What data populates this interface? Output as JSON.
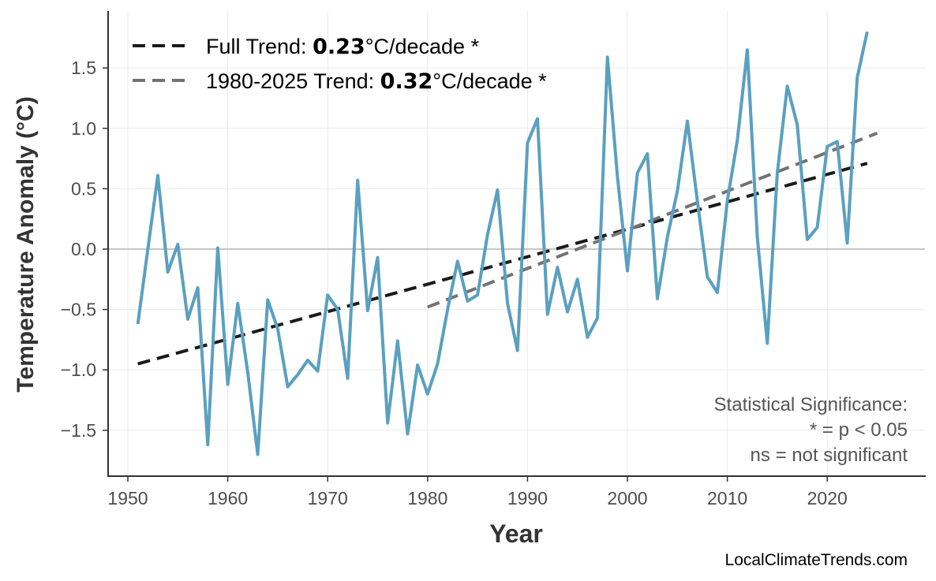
{
  "chart_data": {
    "type": "line",
    "xlabel": "Year",
    "ylabel": "Temperature Anomaly (°C)",
    "xlim": [
      1948,
      2029
    ],
    "ylim": [
      -1.88,
      1.87
    ],
    "xticks": [
      1950,
      1960,
      1970,
      1980,
      1990,
      2000,
      2010,
      2020
    ],
    "yticks": [
      -1.5,
      -1.0,
      -0.5,
      0.0,
      0.5,
      1.0,
      1.5
    ],
    "ytick_labels": [
      "−1.5",
      "−1.0",
      "−0.5",
      "0.0",
      "0.5",
      "1.0",
      "1.5"
    ],
    "grid": true,
    "zero_line": true,
    "series": [
      {
        "color": "#5aa0c0",
        "x": [
          1951,
          1952,
          1953,
          1954,
          1955,
          1956,
          1957,
          1958,
          1959,
          1960,
          1961,
          1962,
          1963,
          1964,
          1965,
          1966,
          1967,
          1968,
          1969,
          1970,
          1971,
          1972,
          1973,
          1974,
          1975,
          1976,
          1977,
          1978,
          1979,
          1980,
          1981,
          1982,
          1983,
          1984,
          1985,
          1986,
          1987,
          1988,
          1989,
          1990,
          1991,
          1992,
          1993,
          1994,
          1995,
          1996,
          1997,
          1998,
          1999,
          2000,
          2001,
          2002,
          2003,
          2004,
          2005,
          2006,
          2007,
          2008,
          2009,
          2010,
          2011,
          2012,
          2013,
          2014,
          2015,
          2016,
          2017,
          2018,
          2019,
          2020,
          2021,
          2022,
          2023,
          2024
        ],
        "y": [
          -0.62,
          0.0,
          0.61,
          -0.19,
          0.04,
          -0.58,
          -0.32,
          -1.62,
          0.01,
          -1.12,
          -0.45,
          -1.02,
          -1.7,
          -0.42,
          -0.66,
          -1.14,
          -1.04,
          -0.92,
          -1.01,
          -0.38,
          -0.5,
          -1.07,
          0.57,
          -0.51,
          -0.07,
          -1.44,
          -0.76,
          -1.53,
          -0.96,
          -1.2,
          -0.95,
          -0.5,
          -0.1,
          -0.43,
          -0.38,
          0.12,
          0.49,
          -0.45,
          -0.84,
          0.88,
          1.08,
          -0.54,
          -0.15,
          -0.52,
          -0.25,
          -0.73,
          -0.57,
          1.59,
          0.6,
          -0.18,
          0.63,
          0.79,
          -0.41,
          0.1,
          0.48,
          1.06,
          0.4,
          -0.23,
          -0.36,
          0.4,
          0.9,
          1.65,
          0.1,
          -0.78,
          0.63,
          1.35,
          1.03,
          0.08,
          0.18,
          0.85,
          0.89,
          0.05,
          1.42,
          1.8
        ]
      }
    ],
    "trends": [
      {
        "legend_prefix": "Full Trend: ",
        "value": "0.23",
        "legend_suffix": "°C/decade *",
        "color": "#1a1a1a",
        "x": [
          1951,
          2024
        ],
        "y": [
          -0.95,
          0.71
        ]
      },
      {
        "legend_prefix": "1980-2025 Trend: ",
        "value": "0.32",
        "legend_suffix": "°C/decade *",
        "color": "#737373",
        "x": [
          1980,
          2025
        ],
        "y": [
          -0.48,
          0.96
        ]
      }
    ],
    "legend_position": "top-left",
    "annotation": [
      "Statistical Significance:",
      "* = p < 0.05",
      "ns = not significant"
    ],
    "watermark": "LocalClimateTrends.com"
  }
}
